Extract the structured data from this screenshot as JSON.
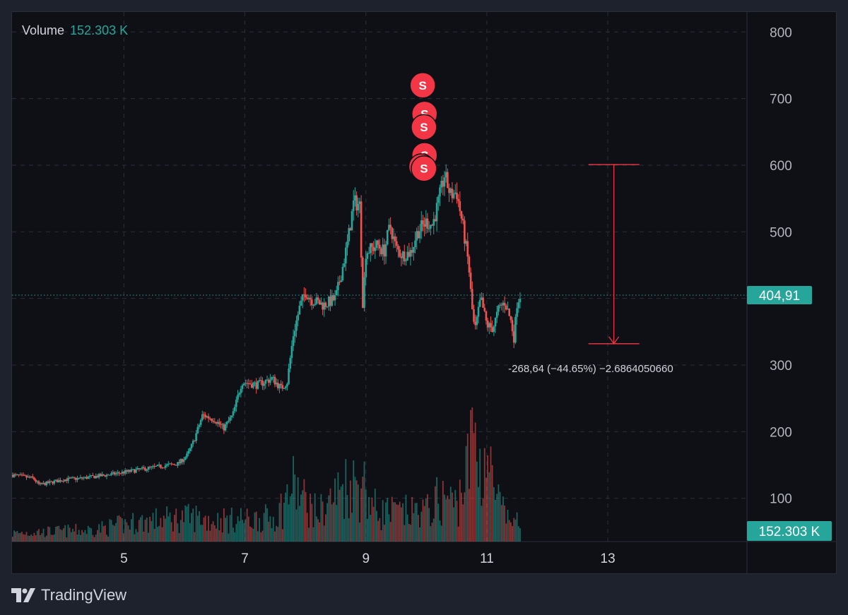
{
  "legend": {
    "label": "Volume",
    "value": "152.303 K"
  },
  "brand": {
    "name": "TradingView"
  },
  "colors": {
    "up": "#26a69a",
    "down": "#ef5350",
    "sell": "#f23645",
    "grid": "#2a2e39",
    "background": "#0f1015",
    "text": "#b2b5be"
  },
  "chart_data": {
    "type": "candlestick",
    "y_axis": {
      "ticks": [
        100,
        200,
        300,
        400,
        500,
        600,
        700,
        800
      ],
      "range": [
        35,
        830
      ],
      "position": "right"
    },
    "x_axis": {
      "ticks": [
        "5",
        "7",
        "9",
        "11",
        "13"
      ],
      "tick_values": [
        5,
        7,
        9,
        11,
        13
      ],
      "range": [
        3.15,
        15.3
      ]
    },
    "last_price": {
      "value": 404.91,
      "label": "404,91"
    },
    "volume_last": {
      "label": "152.303 K"
    },
    "measure": {
      "from": 601,
      "to": 332,
      "x_day": 13.1,
      "label": "-268,64 (−44.65%) −2.6864050660"
    },
    "sell_markers": [
      {
        "x": 9.94,
        "y": 720,
        "label": "S"
      },
      {
        "x": 9.97,
        "y": 677,
        "label": "S"
      },
      {
        "x": 9.96,
        "y": 657,
        "label": "S"
      },
      {
        "x": 9.97,
        "y": 615,
        "label": "S"
      },
      {
        "x": 9.92,
        "y": 598,
        "label": "S"
      },
      {
        "x": 9.96,
        "y": 595,
        "label": "S"
      }
    ],
    "price_path": [
      [
        3.15,
        135
      ],
      [
        3.5,
        130
      ],
      [
        3.6,
        120
      ],
      [
        4.0,
        128
      ],
      [
        4.3,
        130
      ],
      [
        4.8,
        136
      ],
      [
        5.2,
        142
      ],
      [
        5.6,
        148
      ],
      [
        5.9,
        152
      ],
      [
        6.05,
        165
      ],
      [
        6.15,
        185
      ],
      [
        6.3,
        225
      ],
      [
        6.5,
        218
      ],
      [
        6.65,
        205
      ],
      [
        6.8,
        225
      ],
      [
        6.95,
        275
      ],
      [
        7.2,
        270
      ],
      [
        7.45,
        280
      ],
      [
        7.6,
        265
      ],
      [
        7.7,
        275
      ],
      [
        7.8,
        345
      ],
      [
        7.9,
        385
      ],
      [
        8.0,
        410
      ],
      [
        8.1,
        398
      ],
      [
        8.3,
        390
      ],
      [
        8.5,
        400
      ],
      [
        8.6,
        440
      ],
      [
        8.7,
        485
      ],
      [
        8.8,
        545
      ],
      [
        8.9,
        540
      ],
      [
        8.95,
        390
      ],
      [
        9.0,
        470
      ],
      [
        9.2,
        480
      ],
      [
        9.3,
        470
      ],
      [
        9.4,
        510
      ],
      [
        9.5,
        475
      ],
      [
        9.6,
        465
      ],
      [
        9.75,
        470
      ],
      [
        9.85,
        500
      ],
      [
        10.0,
        515
      ],
      [
        10.1,
        510
      ],
      [
        10.2,
        545
      ],
      [
        10.3,
        585
      ],
      [
        10.4,
        555
      ],
      [
        10.5,
        560
      ],
      [
        10.6,
        510
      ],
      [
        10.7,
        450
      ],
      [
        10.75,
        390
      ],
      [
        10.8,
        350
      ],
      [
        10.9,
        400
      ],
      [
        11.0,
        360
      ],
      [
        11.1,
        355
      ],
      [
        11.2,
        385
      ],
      [
        11.3,
        395
      ],
      [
        11.4,
        365
      ],
      [
        11.45,
        340
      ],
      [
        11.5,
        395
      ],
      [
        11.55,
        405
      ]
    ],
    "volume_path": [
      [
        3.15,
        8
      ],
      [
        4.5,
        12
      ],
      [
        5.0,
        18
      ],
      [
        5.5,
        22
      ],
      [
        6.0,
        25
      ],
      [
        6.5,
        22
      ],
      [
        7.0,
        22
      ],
      [
        7.5,
        24
      ],
      [
        7.8,
        55
      ],
      [
        7.95,
        45
      ],
      [
        8.2,
        28
      ],
      [
        8.6,
        55
      ],
      [
        8.85,
        60
      ],
      [
        9.2,
        30
      ],
      [
        9.6,
        28
      ],
      [
        10.0,
        30
      ],
      [
        10.3,
        45
      ],
      [
        10.5,
        38
      ],
      [
        10.7,
        75
      ],
      [
        10.78,
        125
      ],
      [
        10.9,
        72
      ],
      [
        11.0,
        95
      ],
      [
        11.1,
        55
      ],
      [
        11.3,
        25
      ],
      [
        11.55,
        12
      ]
    ]
  }
}
